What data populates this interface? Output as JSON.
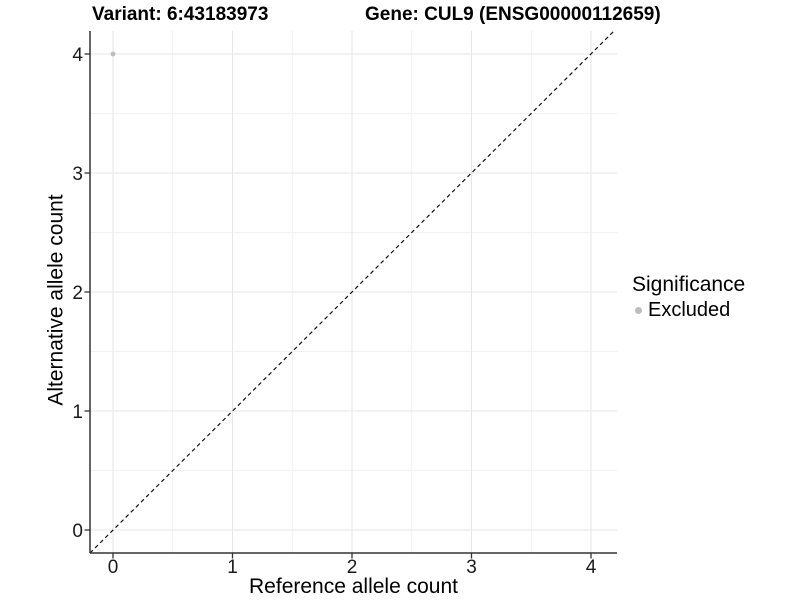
{
  "figure": {
    "title_left": "Variant: 6:43183973",
    "title_right": "Gene: CUL9 (ENSG00000112659)"
  },
  "axes": {
    "x": {
      "label": "Reference allele count",
      "ticks": [
        0,
        1,
        2,
        3,
        4
      ]
    },
    "y": {
      "label": "Alternative allele count",
      "ticks": [
        0,
        1,
        2,
        3,
        4
      ]
    }
  },
  "legend": {
    "title": "Significance",
    "items": [
      {
        "label": "Excluded",
        "color": "#bdbdbd"
      }
    ]
  },
  "style": {
    "background": "#ffffff",
    "grid_major": "#e6e6e6",
    "grid_minor": "#f1f1f1",
    "axis_color": "#333333",
    "tick_label_color": "#1a1a1a",
    "ref_line_color": "#111111",
    "point_color": "#bdbdbd"
  },
  "chart_data": {
    "type": "scatter",
    "title": "Variant: 6:43183973 | Gene: CUL9 (ENSG00000112659)",
    "xlabel": "Reference allele count",
    "ylabel": "Alternative allele count",
    "xlim": [
      -0.2,
      4.2
    ],
    "ylim": [
      -0.2,
      4.2
    ],
    "x_ticks": [
      0,
      1,
      2,
      3,
      4
    ],
    "y_ticks": [
      0,
      1,
      2,
      3,
      4
    ],
    "grid": "major and minor, light gray",
    "legend_position": "right",
    "legend_title": "Significance",
    "series": [
      {
        "name": "Excluded",
        "color": "#bdbdbd",
        "points": [
          {
            "x": 0,
            "y": 4
          }
        ]
      }
    ],
    "annotations": [
      {
        "type": "abline",
        "slope": 1,
        "intercept": 0,
        "style": "dashed",
        "color": "#000000",
        "note": "y = x reference line"
      }
    ]
  }
}
